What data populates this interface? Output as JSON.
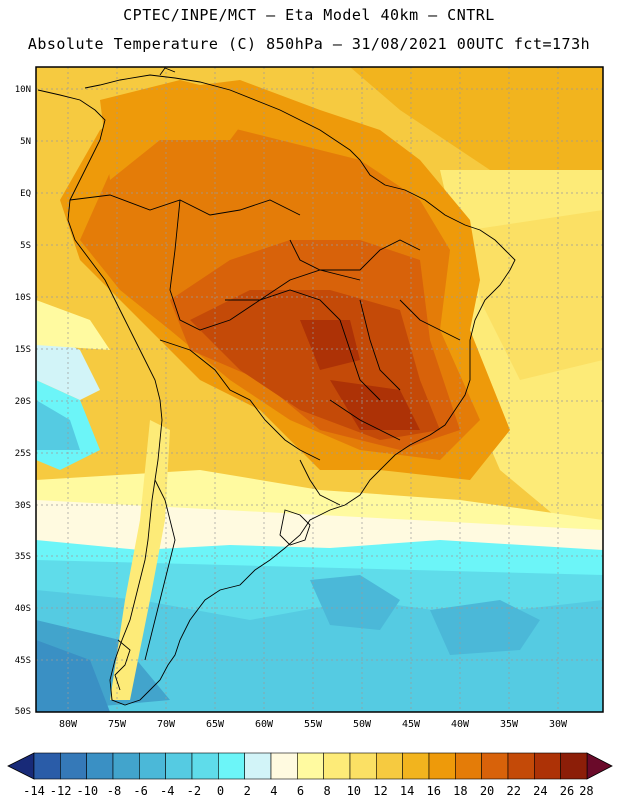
{
  "title": {
    "line1": "CPTEC/INPE/MCT –  Eta Model 40km – CNTRL",
    "line2": "Absolute Temperature (C) 850hPa – 31/08/2021 00UTC fct=173h"
  },
  "map": {
    "region": "South America",
    "variable": "Absolute Temperature (C) 850hPa",
    "lon_range": [
      -85,
      -25
    ],
    "lat_range": [
      -50,
      12
    ],
    "lat_labels": [
      "10N",
      "5N",
      "EQ",
      "5S",
      "10S",
      "15S",
      "20S",
      "25S",
      "30S",
      "35S",
      "40S",
      "45S",
      "50S"
    ],
    "lat_values": [
      10,
      5,
      0,
      -5,
      -10,
      -15,
      -20,
      -25,
      -30,
      -35,
      -40,
      -45,
      -50
    ],
    "lon_labels": [
      "80W",
      "75W",
      "70W",
      "65W",
      "60W",
      "55W",
      "50W",
      "45W",
      "40W",
      "35W",
      "30W"
    ],
    "lon_values": [
      -80,
      -75,
      -70,
      -65,
      -60,
      -55,
      -50,
      -45,
      -40,
      -35,
      -30
    ]
  },
  "colorbar": {
    "labels": [
      "-14",
      "-12",
      "-10",
      "-8",
      "-6",
      "-4",
      "-2",
      "0",
      "2",
      "4",
      "6",
      "8",
      "10",
      "12",
      "14",
      "16",
      "18",
      "20",
      "22",
      "24",
      "26",
      "28"
    ],
    "colors": [
      "#1f3f94",
      "#2a5ca8",
      "#3579b8",
      "#3a90c4",
      "#42a4cc",
      "#4bb8d8",
      "#55cbe2",
      "#5fdcea",
      "#6cf5f8",
      "#d2f4f8",
      "#fffae0",
      "#fffaa0",
      "#fdeb78",
      "#fbe064",
      "#f6ca40",
      "#f2b41e",
      "#ee9a0a",
      "#e47c08",
      "#d8620a",
      "#c44a08",
      "#ad3206",
      "#8c1e08",
      "#701010"
    ],
    "left_arrow_color": "#182a78",
    "right_arrow_color": "#6a0a2a"
  }
}
